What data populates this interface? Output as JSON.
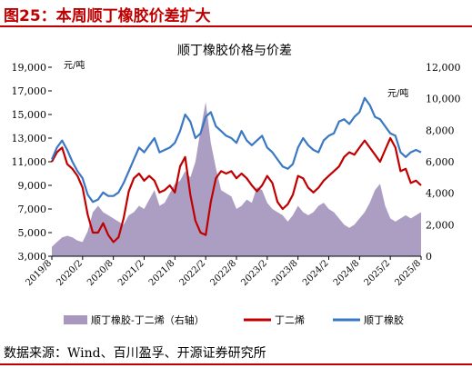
{
  "figure": {
    "title": "图25：本周顺丁橡胶价差扩大",
    "source": "数据来源：Wind、百川盈孚、开源证券研究所"
  },
  "chart_data": {
    "type": "line",
    "title": "顺丁橡胶价格与价差",
    "left_unit": "元/吨",
    "right_unit": "元/吨",
    "ylim_left": [
      3000,
      19000
    ],
    "yticks_left": [
      "3,000",
      "5,000",
      "7,000",
      "9,000",
      "11,000",
      "13,000",
      "15,000",
      "17,000",
      "19,000"
    ],
    "ylim_right": [
      0,
      12000
    ],
    "yticks_right": [
      "0",
      "2,000",
      "4,000",
      "6,000",
      "8,000",
      "10,000",
      "12,000"
    ],
    "xlim": [
      "2019-08",
      "2025-08"
    ],
    "x_tick_labels": [
      "2019/8",
      "2020/2",
      "2020/8",
      "2021/2",
      "2021/8",
      "2022/2",
      "2022/8",
      "2023/2",
      "2023/8",
      "2024/2",
      "2024/8",
      "2025/2",
      "2025/8"
    ],
    "grid": false,
    "legend_position": "bottom",
    "colors": {
      "spread": "#a898c0",
      "butadiene": "#c00000",
      "br": "#3a78c4"
    },
    "x": [
      "2019-08",
      "2019-09",
      "2019-10",
      "2019-11",
      "2019-12",
      "2020-01",
      "2020-02",
      "2020-03",
      "2020-04",
      "2020-05",
      "2020-06",
      "2020-07",
      "2020-08",
      "2020-09",
      "2020-10",
      "2020-11",
      "2020-12",
      "2021-01",
      "2021-02",
      "2021-03",
      "2021-04",
      "2021-05",
      "2021-06",
      "2021-07",
      "2021-08",
      "2021-09",
      "2021-10",
      "2021-11",
      "2021-12",
      "2022-01",
      "2022-02",
      "2022-03",
      "2022-04",
      "2022-05",
      "2022-06",
      "2022-07",
      "2022-08",
      "2022-09",
      "2022-10",
      "2022-11",
      "2022-12",
      "2023-01",
      "2023-02",
      "2023-03",
      "2023-04",
      "2023-05",
      "2023-06",
      "2023-07",
      "2023-08",
      "2023-09",
      "2023-10",
      "2023-11",
      "2023-12",
      "2024-01",
      "2024-02",
      "2024-03",
      "2024-04",
      "2024-05",
      "2024-06",
      "2024-07",
      "2024-08",
      "2024-09",
      "2024-10",
      "2024-11",
      "2024-12",
      "2025-01",
      "2025-02",
      "2025-03",
      "2025-04",
      "2025-05",
      "2025-06",
      "2025-07",
      "2025-08"
    ],
    "series": [
      {
        "name": "顺丁橡胶-丁二烯（右轴）",
        "axis": "right",
        "type": "area",
        "values": [
          600,
          900,
          1200,
          1300,
          1200,
          1000,
          900,
          1600,
          2800,
          3200,
          2800,
          2600,
          2400,
          2200,
          2000,
          2600,
          2800,
          3200,
          3000,
          3600,
          4200,
          3200,
          3400,
          4000,
          4600,
          4800,
          5400,
          5000,
          6000,
          8000,
          9800,
          7200,
          5600,
          4200,
          4000,
          3800,
          3000,
          3200,
          3600,
          3400,
          4400,
          4200,
          3400,
          3000,
          2800,
          2600,
          2200,
          2600,
          3200,
          2800,
          2600,
          2800,
          3200,
          3400,
          3000,
          2800,
          2400,
          2000,
          1800,
          2000,
          2400,
          2800,
          3400,
          4200,
          4600,
          3200,
          2400,
          2200,
          2400,
          2600,
          2400,
          2600,
          2800
        ]
      },
      {
        "name": "丁二烯",
        "axis": "left",
        "type": "line",
        "values": [
          11000,
          11800,
          12200,
          10800,
          10400,
          9800,
          8800,
          6500,
          5000,
          5000,
          5800,
          4800,
          4200,
          4600,
          6200,
          8500,
          9600,
          10000,
          9400,
          9800,
          9400,
          8400,
          8600,
          9000,
          8400,
          10600,
          11400,
          8200,
          6000,
          5000,
          4800,
          7600,
          9600,
          10200,
          10000,
          10200,
          9600,
          10000,
          9600,
          9000,
          8500,
          9000,
          9800,
          9200,
          7600,
          7000,
          7400,
          8200,
          9800,
          9600,
          8800,
          8400,
          8800,
          9400,
          9800,
          10200,
          10600,
          11400,
          11800,
          11600,
          12200,
          12800,
          12200,
          11600,
          11000,
          12000,
          13000,
          12200,
          10200,
          10400,
          9200,
          9400,
          9000
        ]
      },
      {
        "name": "顺丁橡胶",
        "axis": "left",
        "type": "line",
        "values": [
          11200,
          12200,
          12800,
          12000,
          11000,
          10200,
          9600,
          8200,
          7600,
          7800,
          8400,
          8100,
          8100,
          8400,
          9200,
          10200,
          11200,
          12200,
          11800,
          12400,
          13000,
          11800,
          12000,
          12200,
          12600,
          13600,
          15000,
          14400,
          13000,
          13400,
          14800,
          15200,
          14000,
          13600,
          13200,
          13000,
          12600,
          13600,
          12800,
          12400,
          12800,
          13200,
          12200,
          11800,
          11200,
          10600,
          10400,
          10800,
          12200,
          13000,
          12400,
          12000,
          11800,
          12800,
          13200,
          13400,
          14400,
          14600,
          14200,
          14800,
          15200,
          16400,
          15800,
          14800,
          14600,
          14000,
          13400,
          13200,
          11800,
          11400,
          11800,
          12000,
          11800
        ]
      }
    ]
  }
}
